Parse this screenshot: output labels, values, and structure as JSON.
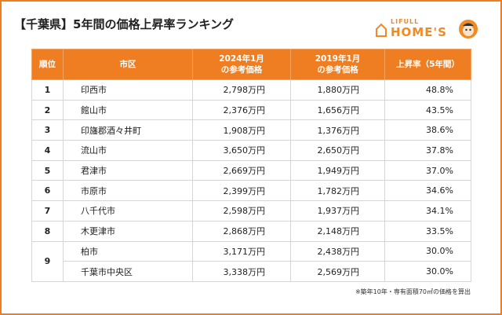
{
  "title": "【千葉県】5年間の価格上昇率ランキング",
  "logo": {
    "top": "LIFULL",
    "bottom": "HOME'S"
  },
  "table": {
    "headers": [
      [
        "順位"
      ],
      [
        "市区"
      ],
      [
        "2024年1月",
        "の参考価格"
      ],
      [
        "2019年1月",
        "の参考価格"
      ],
      [
        "上昇率（5年間）"
      ]
    ],
    "groups": [
      {
        "rank": "1",
        "rows": [
          [
            "印西市",
            "2,798万円",
            "1,880万円",
            "48.8%"
          ]
        ]
      },
      {
        "rank": "2",
        "rows": [
          [
            "館山市",
            "2,376万円",
            "1,656万円",
            "43.5%"
          ]
        ]
      },
      {
        "rank": "3",
        "rows": [
          [
            "印旛郡酒々井町",
            "1,908万円",
            "1,376万円",
            "38.6%"
          ]
        ]
      },
      {
        "rank": "4",
        "rows": [
          [
            "流山市",
            "3,650万円",
            "2,650万円",
            "37.8%"
          ]
        ]
      },
      {
        "rank": "5",
        "rows": [
          [
            "君津市",
            "2,669万円",
            "1,949万円",
            "37.0%"
          ]
        ]
      },
      {
        "rank": "6",
        "rows": [
          [
            "市原市",
            "2,399万円",
            "1,782万円",
            "34.6%"
          ]
        ]
      },
      {
        "rank": "7",
        "rows": [
          [
            "八千代市",
            "2,598万円",
            "1,937万円",
            "34.1%"
          ]
        ]
      },
      {
        "rank": "8",
        "rows": [
          [
            "木更津市",
            "2,868万円",
            "2,148万円",
            "33.5%"
          ]
        ]
      },
      {
        "rank": "9",
        "rows": [
          [
            "柏市",
            "3,171万円",
            "2,438万円",
            "30.0%"
          ],
          [
            "千葉市中央区",
            "3,338万円",
            "2,569万円",
            "30.0%"
          ]
        ]
      }
    ]
  },
  "footnote": "※築年10年・専有面積70㎡の価格を算出"
}
